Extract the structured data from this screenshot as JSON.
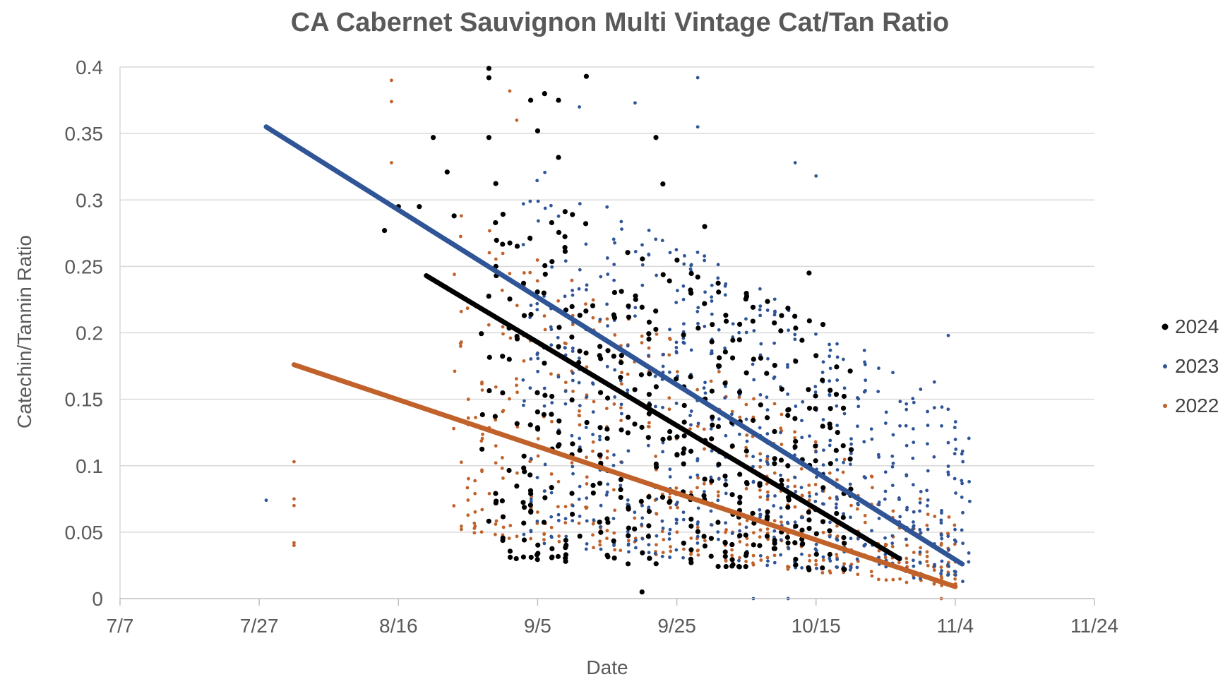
{
  "chart_data": {
    "type": "scatter",
    "title": "CA Cabernet Sauvignon Multi Vintage Cat/Tan Ratio",
    "xlabel": "Date",
    "ylabel": "Catechin/Tannin Ratio",
    "x_axis_type": "date",
    "x_ticks": [
      "7/7",
      "7/27",
      "8/16",
      "9/5",
      "9/25",
      "10/15",
      "11/4",
      "11/24"
    ],
    "xlim": [
      "7/7",
      "11/24"
    ],
    "y_ticks": [
      "0",
      "0.05",
      "0.1",
      "0.15",
      "0.2",
      "0.25",
      "0.3",
      "0.35",
      "0.4"
    ],
    "ylim": [
      0,
      0.4
    ],
    "grid": "horizontal",
    "legend": "right",
    "series": [
      {
        "name": "2024",
        "color": "#000000",
        "marker": "dot-large",
        "trendline": {
          "from": {
            "x": "8/20",
            "y": 0.243
          },
          "to": {
            "x": "10/27",
            "y": 0.03
          }
        },
        "cluster_points": [
          {
            "x": "8/14",
            "y": 0.277
          },
          {
            "x": "8/16",
            "y": 0.295
          },
          {
            "x": "8/19",
            "y": 0.295
          },
          {
            "x": "8/21",
            "y": 0.347
          },
          {
            "x": "8/23",
            "y": 0.321
          },
          {
            "x": "8/24",
            "y": 0.288
          },
          {
            "x": "8/29",
            "y": 0.399
          },
          {
            "x": "8/29",
            "y": 0.392
          },
          {
            "x": "8/29",
            "y": 0.347
          },
          {
            "x": "8/30",
            "y": 0.25
          },
          {
            "x": "9/4",
            "y": 0.375
          },
          {
            "x": "9/5",
            "y": 0.352
          },
          {
            "x": "9/6",
            "y": 0.38
          },
          {
            "x": "9/8",
            "y": 0.375
          },
          {
            "x": "9/12",
            "y": 0.393
          },
          {
            "x": "9/8",
            "y": 0.332
          },
          {
            "x": "9/22",
            "y": 0.347
          },
          {
            "x": "9/23",
            "y": 0.312
          },
          {
            "x": "9/29",
            "y": 0.28
          },
          {
            "x": "10/14",
            "y": 0.245
          },
          {
            "x": "9/20",
            "y": 0.005
          }
        ],
        "band": {
          "x_start": "8/28",
          "x_end": "10/20",
          "y_upper_start": 0.32,
          "y_upper_end": 0.2,
          "y_lower_start": 0.03,
          "y_lower_end": 0.02,
          "density": 420
        }
      },
      {
        "name": "2023",
        "color": "#2f5597",
        "marker": "dot-small",
        "trendline": {
          "from": {
            "x": "7/28",
            "y": 0.355
          },
          "to": {
            "x": "11/5",
            "y": 0.026
          }
        },
        "cluster_points": [
          {
            "x": "7/28",
            "y": 0.074
          },
          {
            "x": "9/28",
            "y": 0.392
          },
          {
            "x": "9/28",
            "y": 0.355
          },
          {
            "x": "9/19",
            "y": 0.373
          },
          {
            "x": "9/11",
            "y": 0.37
          },
          {
            "x": "10/12",
            "y": 0.328
          },
          {
            "x": "10/15",
            "y": 0.318
          },
          {
            "x": "11/3",
            "y": 0.198
          },
          {
            "x": "11/1",
            "y": 0.163
          },
          {
            "x": "10/6",
            "y": 0.0
          },
          {
            "x": "10/11",
            "y": 0.0
          },
          {
            "x": "11/6",
            "y": 0.088
          }
        ],
        "band": {
          "x_start": "9/3",
          "x_end": "11/6",
          "y_upper_start": 0.34,
          "y_upper_end": 0.14,
          "y_lower_start": 0.04,
          "y_lower_end": 0.012,
          "density": 700
        }
      },
      {
        "name": "2022",
        "color": "#c0622a",
        "marker": "dot-small",
        "trendline": {
          "from": {
            "x": "8/1",
            "y": 0.176
          },
          "to": {
            "x": "11/4",
            "y": 0.009
          }
        },
        "cluster_points": [
          {
            "x": "8/1",
            "y": 0.103
          },
          {
            "x": "8/1",
            "y": 0.075
          },
          {
            "x": "8/1",
            "y": 0.07
          },
          {
            "x": "8/1",
            "y": 0.042
          },
          {
            "x": "8/1",
            "y": 0.04
          },
          {
            "x": "8/15",
            "y": 0.39
          },
          {
            "x": "8/15",
            "y": 0.374
          },
          {
            "x": "8/15",
            "y": 0.328
          },
          {
            "x": "9/1",
            "y": 0.382
          },
          {
            "x": "9/2",
            "y": 0.36
          },
          {
            "x": "8/27",
            "y": 0.079
          },
          {
            "x": "11/2",
            "y": 0.0
          }
        ],
        "band": {
          "x_start": "8/24",
          "x_end": "11/4",
          "y_upper_start": 0.3,
          "y_upper_end": 0.06,
          "y_lower_start": 0.05,
          "y_lower_end": 0.008,
          "density": 520
        }
      }
    ]
  }
}
